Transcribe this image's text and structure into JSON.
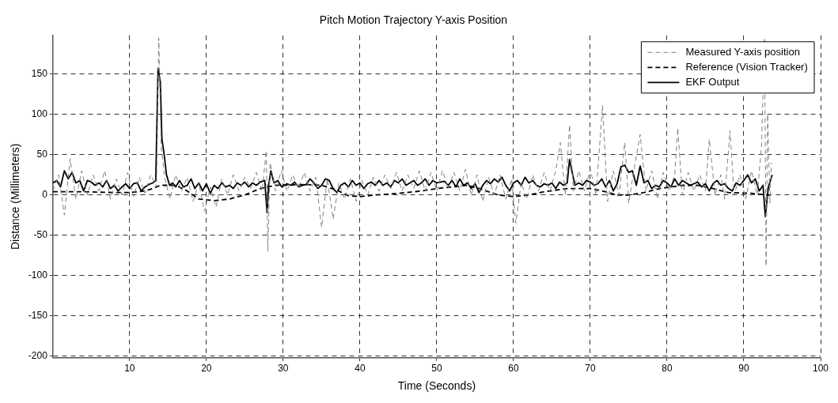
{
  "chart_data": {
    "type": "line",
    "title": "Pitch Motion Trajectory Y-axis Position",
    "xlabel": "Time (Seconds)",
    "ylabel": "Distance (Millimeters)",
    "xlim": [
      0,
      100
    ],
    "xticks": [
      10,
      20,
      30,
      40,
      50,
      60,
      70,
      80,
      90,
      100
    ],
    "ylim": [
      -202,
      198
    ],
    "yticks": [
      -200,
      -150,
      -100,
      -50,
      0,
      50,
      100,
      150
    ],
    "grid": true,
    "legend": "top right",
    "marker": "none",
    "series": [
      {
        "name": "Measured Y-axis position",
        "color": "#808080",
        "line_style": "dashed",
        "x": [
          0,
          0.75,
          1.5,
          2.25,
          3,
          3.75,
          4.5,
          5.25,
          6,
          6.75,
          7.5,
          8.25,
          9,
          9.75,
          10.5,
          11.25,
          12,
          12.75,
          13.5,
          13.8,
          14.1,
          14.6,
          15.25,
          16,
          16.75,
          17.5,
          18.25,
          19,
          19.75,
          20.5,
          21.25,
          22,
          22.75,
          23.5,
          24.25,
          25,
          25.75,
          26.5,
          27.25,
          27.8,
          28,
          28.3,
          29,
          29.75,
          30.5,
          31.25,
          32,
          32.75,
          33.5,
          34.25,
          35,
          35.75,
          36.5,
          37.25,
          38,
          38.75,
          39.5,
          40.25,
          41,
          41.75,
          42.5,
          43.25,
          44,
          44.75,
          45.5,
          46.25,
          47,
          47.75,
          48.5,
          49.25,
          50,
          50.75,
          51.5,
          52.25,
          53,
          53.75,
          54.5,
          55.25,
          56,
          56.75,
          57.5,
          58.25,
          59,
          59.75,
          60.3,
          61,
          61.75,
          62.5,
          63.25,
          64,
          64.75,
          65.5,
          66.1,
          66.75,
          67.3,
          67.8,
          68.5,
          69.25,
          70,
          70.75,
          71.6,
          72.25,
          73,
          73.75,
          74.5,
          75,
          75.75,
          76.5,
          77.25,
          78,
          78.75,
          79.5,
          80.25,
          81,
          81.4,
          82,
          82.75,
          83.5,
          84.25,
          85,
          85.5,
          86.25,
          87,
          87.5,
          88.2,
          88.75,
          89.5,
          90.25,
          91,
          91.75,
          92.3,
          92.7,
          92.9,
          93.1,
          93.4,
          93.6
        ],
        "values": [
          5,
          25,
          -25,
          45,
          -5,
          30,
          0,
          25,
          5,
          30,
          -5,
          20,
          0,
          28,
          -2,
          22,
          2,
          25,
          10,
          195,
          60,
          20,
          -5,
          25,
          5,
          22,
          -8,
          15,
          -20,
          10,
          -15,
          20,
          0,
          25,
          5,
          22,
          8,
          28,
          5,
          55,
          -70,
          40,
          5,
          30,
          5,
          25,
          8,
          28,
          5,
          22,
          -40,
          20,
          -30,
          15,
          -5,
          20,
          -8,
          18,
          0,
          22,
          5,
          25,
          8,
          28,
          5,
          25,
          8,
          30,
          5,
          28,
          5,
          30,
          8,
          28,
          5,
          32,
          0,
          25,
          -8,
          22,
          0,
          25,
          -5,
          20,
          -35,
          15,
          -5,
          25,
          5,
          28,
          5,
          30,
          65,
          0,
          87,
          5,
          30,
          5,
          32,
          0,
          111,
          -8,
          30,
          0,
          65,
          -10,
          35,
          75,
          5,
          30,
          -5,
          28,
          5,
          25,
          83,
          0,
          28,
          5,
          25,
          5,
          69,
          0,
          25,
          -5,
          80,
          0,
          25,
          -5,
          30,
          0,
          60,
          195,
          -88,
          100,
          -10,
          40
        ]
      },
      {
        "name": "Reference (Vision Tracker)",
        "color": "#000000",
        "line_style": "dashed",
        "x": [
          0,
          4,
          8,
          10,
          12,
          13,
          14,
          16,
          17.5,
          19,
          21,
          23,
          25,
          27,
          29,
          33,
          35,
          37,
          38.5,
          40,
          42,
          45,
          48,
          50,
          52,
          54,
          55.5,
          58,
          60,
          62,
          64,
          67,
          70,
          72,
          73.5,
          75,
          77,
          79,
          82,
          84,
          86,
          88,
          91,
          93,
          93.6
        ],
        "values": [
          4,
          4,
          3,
          3,
          5,
          8,
          12,
          12,
          5,
          -5,
          -7,
          -5,
          0,
          8,
          12,
          13,
          12,
          6,
          -1,
          -2,
          0,
          2,
          5,
          8,
          10,
          12,
          8,
          0,
          -2,
          0,
          4,
          8,
          8,
          4,
          0,
          0,
          3,
          8,
          12,
          12,
          8,
          3,
          2,
          0,
          0
        ]
      },
      {
        "name": "EKF Output",
        "color": "#000000",
        "line_style": "solid",
        "x": [
          0,
          0.5,
          1,
          1.5,
          2,
          2.5,
          3,
          3.5,
          4,
          4.5,
          5,
          5.5,
          6,
          6.5,
          7,
          7.5,
          8,
          8.5,
          9,
          9.5,
          10,
          10.5,
          11,
          11.5,
          12,
          12.5,
          13,
          13.4,
          13.7,
          14,
          14.2,
          14.5,
          14.8,
          15.2,
          15.6,
          16,
          16.5,
          17,
          17.5,
          18,
          18.5,
          19,
          19.5,
          20,
          20.5,
          21,
          21.5,
          22,
          22.5,
          23,
          23.5,
          24,
          24.5,
          25,
          25.5,
          26,
          26.5,
          27,
          27.6,
          27.9,
          28.1,
          28.4,
          28.8,
          29.3,
          29.8,
          30.5,
          31,
          31.5,
          32,
          32.5,
          33,
          33.5,
          34,
          34.5,
          35,
          35.5,
          36,
          36.5,
          37,
          37.5,
          38,
          38.5,
          39,
          39.5,
          40,
          40.5,
          41,
          41.5,
          42,
          42.5,
          43,
          43.5,
          44,
          44.5,
          45,
          45.5,
          46,
          46.5,
          47,
          47.5,
          48,
          48.5,
          49,
          49.5,
          50,
          51,
          51.5,
          52,
          52.5,
          53,
          53.5,
          54,
          54.5,
          55,
          55.5,
          56,
          56.5,
          57,
          57.5,
          58,
          58.5,
          59,
          59.5,
          60,
          60.5,
          61,
          61.5,
          62,
          62.5,
          63,
          63.5,
          64,
          64.5,
          65,
          65.5,
          66,
          66.5,
          67,
          67.3,
          67.6,
          68,
          68.5,
          69,
          69.5,
          70,
          70.5,
          71,
          71.5,
          72,
          72.5,
          73,
          73.5,
          74,
          74.5,
          75,
          75.5,
          76,
          76.5,
          77,
          77.5,
          78,
          78.5,
          79,
          79.5,
          80,
          80.5,
          81,
          81.5,
          82,
          82.5,
          83,
          83.5,
          84,
          84.5,
          85,
          85.5,
          86,
          86.5,
          87,
          87.5,
          88,
          88.5,
          89,
          89.5,
          90,
          90.5,
          91,
          91.5,
          92,
          92.5,
          92.8,
          93.2,
          93.7
        ],
        "values": [
          15,
          18,
          10,
          30,
          20,
          28,
          15,
          18,
          5,
          18,
          16,
          12,
          15,
          10,
          18,
          8,
          12,
          5,
          10,
          14,
          8,
          14,
          15,
          5,
          10,
          13,
          15,
          18,
          157,
          140,
          70,
          50,
          25,
          12,
          15,
          10,
          18,
          10,
          12,
          20,
          8,
          15,
          5,
          14,
          2,
          12,
          8,
          15,
          10,
          12,
          8,
          15,
          12,
          16,
          10,
          15,
          12,
          16,
          18,
          -22,
          12,
          30,
          15,
          18,
          10,
          14,
          12,
          16,
          10,
          12,
          13,
          20,
          15,
          8,
          12,
          20,
          18,
          8,
          3,
          12,
          15,
          10,
          18,
          12,
          15,
          8,
          14,
          16,
          12,
          18,
          12,
          15,
          10,
          18,
          15,
          20,
          12,
          15,
          18,
          12,
          15,
          20,
          12,
          18,
          15,
          17,
          12,
          18,
          10,
          20,
          12,
          15,
          8,
          14,
          3,
          12,
          18,
          14,
          20,
          16,
          22,
          12,
          5,
          15,
          18,
          12,
          22,
          15,
          18,
          12,
          10,
          14,
          12,
          15,
          8,
          16,
          12,
          15,
          44,
          30,
          12,
          15,
          12,
          18,
          16,
          12,
          14,
          20,
          10,
          18,
          5,
          14,
          35,
          37,
          28,
          30,
          12,
          36,
          15,
          18,
          8,
          12,
          10,
          18,
          15,
          10,
          20,
          12,
          18,
          15,
          12,
          14,
          16,
          10,
          14,
          5,
          14,
          18,
          12,
          14,
          8,
          5,
          15,
          12,
          18,
          25,
          15,
          20,
          5,
          12,
          -27,
          10,
          25
        ]
      }
    ]
  }
}
